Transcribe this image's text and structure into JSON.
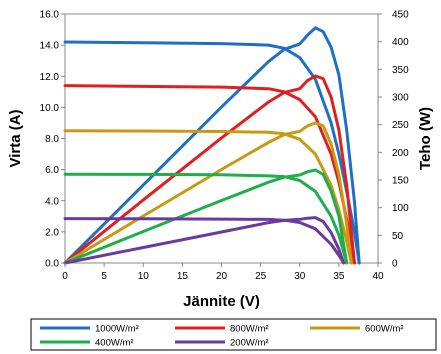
{
  "chart_data": {
    "type": "line",
    "xlabel": "Jännite (V)",
    "ylabel_left": "Virta (A)",
    "ylabel_right": "Teho (W)",
    "xlim": [
      0,
      40
    ],
    "ylim_left": [
      0,
      16
    ],
    "ylim_right": [
      0,
      450
    ],
    "x_ticks": [
      "0",
      "5",
      "10",
      "15",
      "20",
      "25",
      "30",
      "35",
      "40"
    ],
    "y_left_ticks": [
      "0.0",
      "2.0",
      "4.0",
      "6.0",
      "8.0",
      "10.0",
      "12.0",
      "14.0",
      "16.0"
    ],
    "y_right_ticks": [
      "0",
      "50",
      "100",
      "150",
      "200",
      "250",
      "300",
      "350",
      "400",
      "450"
    ],
    "legend_position": "bottom",
    "series": [
      {
        "name": "1000W/m²",
        "color": "#1f6fc5",
        "current_iv": [
          [
            0,
            14.2
          ],
          [
            10,
            14.15
          ],
          [
            20,
            14.1
          ],
          [
            26,
            14.0
          ],
          [
            28,
            13.8
          ],
          [
            30,
            13.2
          ],
          [
            32,
            11.8
          ],
          [
            34,
            9.0
          ],
          [
            35,
            7.0
          ],
          [
            36,
            4.6
          ],
          [
            37,
            2.0
          ],
          [
            37.6,
            0
          ]
        ],
        "power_pv": [
          [
            0,
            0
          ],
          [
            10,
            141
          ],
          [
            20,
            282
          ],
          [
            26,
            364
          ],
          [
            28,
            386
          ],
          [
            30,
            396
          ],
          [
            31,
            412
          ],
          [
            32,
            425
          ],
          [
            33,
            418
          ],
          [
            34,
            390
          ],
          [
            35,
            340
          ],
          [
            36,
            240
          ],
          [
            37,
            110
          ],
          [
            37.6,
            0
          ]
        ]
      },
      {
        "name": "800W/m²",
        "color": "#e02020",
        "current_iv": [
          [
            0,
            11.4
          ],
          [
            10,
            11.35
          ],
          [
            20,
            11.3
          ],
          [
            26,
            11.2
          ],
          [
            28,
            11.0
          ],
          [
            30,
            10.5
          ],
          [
            32,
            9.4
          ],
          [
            34,
            7.0
          ],
          [
            35,
            5.2
          ],
          [
            36,
            2.8
          ],
          [
            37,
            0
          ]
        ],
        "power_pv": [
          [
            0,
            0
          ],
          [
            10,
            114
          ],
          [
            20,
            226
          ],
          [
            26,
            291
          ],
          [
            28,
            308
          ],
          [
            30,
            315
          ],
          [
            31,
            330
          ],
          [
            32,
            338
          ],
          [
            33,
            333
          ],
          [
            34,
            300
          ],
          [
            35,
            240
          ],
          [
            36,
            140
          ],
          [
            37,
            0
          ]
        ]
      },
      {
        "name": "600W/m²",
        "color": "#c89a12",
        "current_iv": [
          [
            0,
            8.5
          ],
          [
            10,
            8.48
          ],
          [
            20,
            8.45
          ],
          [
            26,
            8.4
          ],
          [
            28,
            8.3
          ],
          [
            30,
            7.95
          ],
          [
            32,
            7.0
          ],
          [
            34,
            5.0
          ],
          [
            35,
            3.4
          ],
          [
            36,
            1.4
          ],
          [
            36.6,
            0
          ]
        ],
        "power_pv": [
          [
            0,
            0
          ],
          [
            10,
            85
          ],
          [
            20,
            169
          ],
          [
            26,
            218
          ],
          [
            28,
            232
          ],
          [
            30,
            238
          ],
          [
            31,
            248
          ],
          [
            32,
            253
          ],
          [
            33,
            248
          ],
          [
            34,
            215
          ],
          [
            35,
            160
          ],
          [
            36,
            70
          ],
          [
            36.6,
            0
          ]
        ]
      },
      {
        "name": "400W/m²",
        "color": "#1fae4a",
        "current_iv": [
          [
            0,
            5.7
          ],
          [
            10,
            5.69
          ],
          [
            20,
            5.67
          ],
          [
            26,
            5.6
          ],
          [
            28,
            5.55
          ],
          [
            30,
            5.3
          ],
          [
            32,
            4.6
          ],
          [
            34,
            3.0
          ],
          [
            35,
            1.8
          ],
          [
            36,
            0
          ]
        ],
        "power_pv": [
          [
            0,
            0
          ],
          [
            10,
            57
          ],
          [
            20,
            113
          ],
          [
            26,
            146
          ],
          [
            28,
            155
          ],
          [
            30,
            159
          ],
          [
            31,
            165
          ],
          [
            32,
            168
          ],
          [
            33,
            160
          ],
          [
            34,
            130
          ],
          [
            35,
            85
          ],
          [
            36,
            0
          ]
        ]
      },
      {
        "name": "200W/m²",
        "color": "#6a3a9e",
        "current_iv": [
          [
            0,
            2.85
          ],
          [
            10,
            2.84
          ],
          [
            20,
            2.82
          ],
          [
            26,
            2.8
          ],
          [
            28,
            2.75
          ],
          [
            30,
            2.6
          ],
          [
            32,
            2.2
          ],
          [
            34,
            1.2
          ],
          [
            35,
            0.5
          ],
          [
            35.6,
            0
          ]
        ],
        "power_pv": [
          [
            0,
            0
          ],
          [
            10,
            28
          ],
          [
            20,
            56
          ],
          [
            26,
            73
          ],
          [
            28,
            77
          ],
          [
            30,
            79
          ],
          [
            31,
            81
          ],
          [
            32,
            82
          ],
          [
            33,
            75
          ],
          [
            34,
            55
          ],
          [
            35,
            25
          ],
          [
            35.6,
            0
          ]
        ]
      }
    ]
  }
}
